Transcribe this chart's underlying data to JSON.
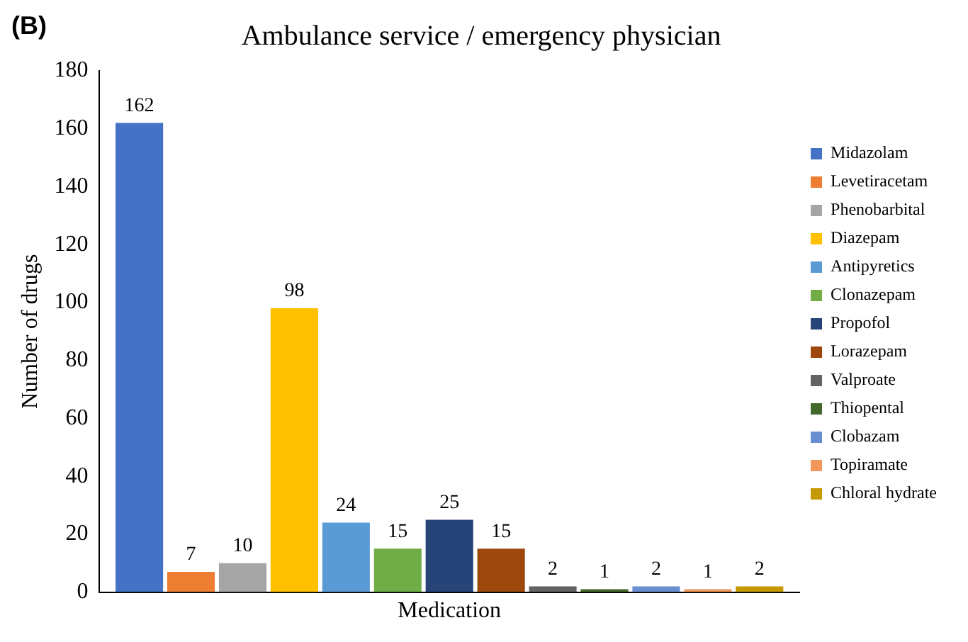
{
  "chart_data": {
    "type": "bar",
    "title": "Ambulance service / emergency physician",
    "xlabel": "Medication",
    "ylabel": "Number of drugs",
    "annotations": [
      "(B)"
    ],
    "categories": [
      null
    ],
    "series": [
      {
        "name": "Midazolam",
        "color": "#4472c4",
        "values": [
          162
        ]
      },
      {
        "name": "Levetiracetam",
        "color": "#ed7d31",
        "values": [
          7
        ]
      },
      {
        "name": "Phenobarbital",
        "color": "#a5a5a5",
        "values": [
          10
        ]
      },
      {
        "name": "Diazepam",
        "color": "#ffc000",
        "values": [
          98
        ]
      },
      {
        "name": "Antipyretics",
        "color": "#5b9bd5",
        "values": [
          24
        ]
      },
      {
        "name": "Clonazepam",
        "color": "#70ad47",
        "values": [
          15
        ]
      },
      {
        "name": "Propofol",
        "color": "#264478",
        "values": [
          25
        ]
      },
      {
        "name": "Lorazepam",
        "color": "#9e480e",
        "values": [
          15
        ]
      },
      {
        "name": "Valproate",
        "color": "#636363",
        "values": [
          2
        ]
      },
      {
        "name": "Thiopental",
        "color": "#43682b",
        "values": [
          1
        ]
      },
      {
        "name": "Clobazam",
        "color": "#698ed0",
        "values": [
          2
        ]
      },
      {
        "name": "Topiramate",
        "color": "#f1975a",
        "values": [
          1
        ]
      },
      {
        "name": "Chloral hydrate",
        "color": "#c49a00",
        "values": [
          2
        ]
      }
    ],
    "ylim": [
      0,
      180
    ],
    "yticks": [
      0,
      20,
      40,
      60,
      80,
      100,
      120,
      140,
      160,
      180
    ],
    "grid": false,
    "legend": "right",
    "data_labels": true
  }
}
